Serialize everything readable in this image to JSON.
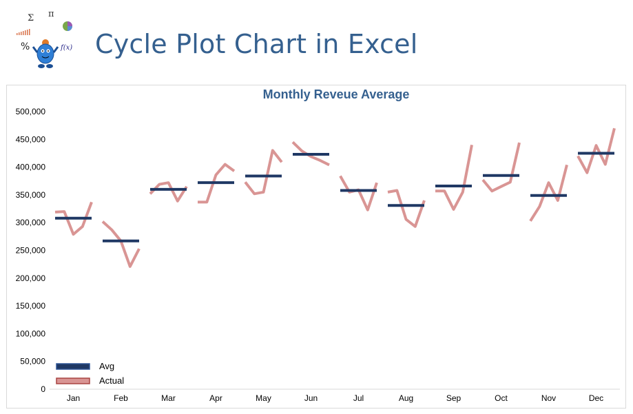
{
  "page_title": "Cycle Plot Chart in Excel",
  "logo": {
    "glyphs": [
      "Σ",
      "π",
      "%",
      "f(x)"
    ]
  },
  "colors": {
    "title": "#35608f",
    "avg": "#1f3864",
    "actual": "#d99594",
    "axis": "#000000"
  },
  "chart_data": {
    "type": "line",
    "title": "Monthly Reveue Average",
    "categories": [
      "Jan",
      "Feb",
      "Mar",
      "Apr",
      "May",
      "Jun",
      "Jul",
      "Aug",
      "Sep",
      "Oct",
      "Nov",
      "Dec"
    ],
    "ylim": [
      0,
      500000
    ],
    "yticks": [
      0,
      50000,
      100000,
      150000,
      200000,
      250000,
      300000,
      350000,
      400000,
      450000,
      500000
    ],
    "ytick_labels": [
      "0",
      "50,000",
      "100,000",
      "150,000",
      "200,000",
      "250,000",
      "300,000",
      "350,000",
      "400,000",
      "450,000",
      "500,000"
    ],
    "legend": {
      "position": "bottom-left",
      "entries": [
        "Avg",
        "Actual"
      ]
    },
    "series": [
      {
        "name": "Avg",
        "values": [
          308000,
          267000,
          360000,
          372000,
          384000,
          423000,
          358000,
          331000,
          366000,
          385000,
          349000,
          425000
        ]
      },
      {
        "name": "Actual",
        "values": [
          [
            319000,
            320000,
            279000,
            293000,
            337000
          ],
          [
            302000,
            287000,
            267000,
            221000,
            253000
          ],
          [
            352000,
            369000,
            372000,
            339000,
            365000
          ],
          [
            337000,
            337000,
            386000,
            405000,
            393000
          ],
          [
            373000,
            352000,
            355000,
            430000,
            409000
          ],
          [
            445000,
            429000,
            419000,
            412000,
            404000
          ],
          [
            384000,
            355000,
            359000,
            323000,
            372000
          ],
          [
            355000,
            358000,
            306000,
            293000,
            340000
          ],
          [
            357000,
            357000,
            324000,
            355000,
            440000
          ],
          [
            377000,
            357000,
            365000,
            373000,
            444000
          ],
          [
            303000,
            329000,
            372000,
            340000,
            404000
          ],
          [
            420000,
            390000,
            439000,
            405000,
            470000
          ]
        ]
      }
    ]
  }
}
